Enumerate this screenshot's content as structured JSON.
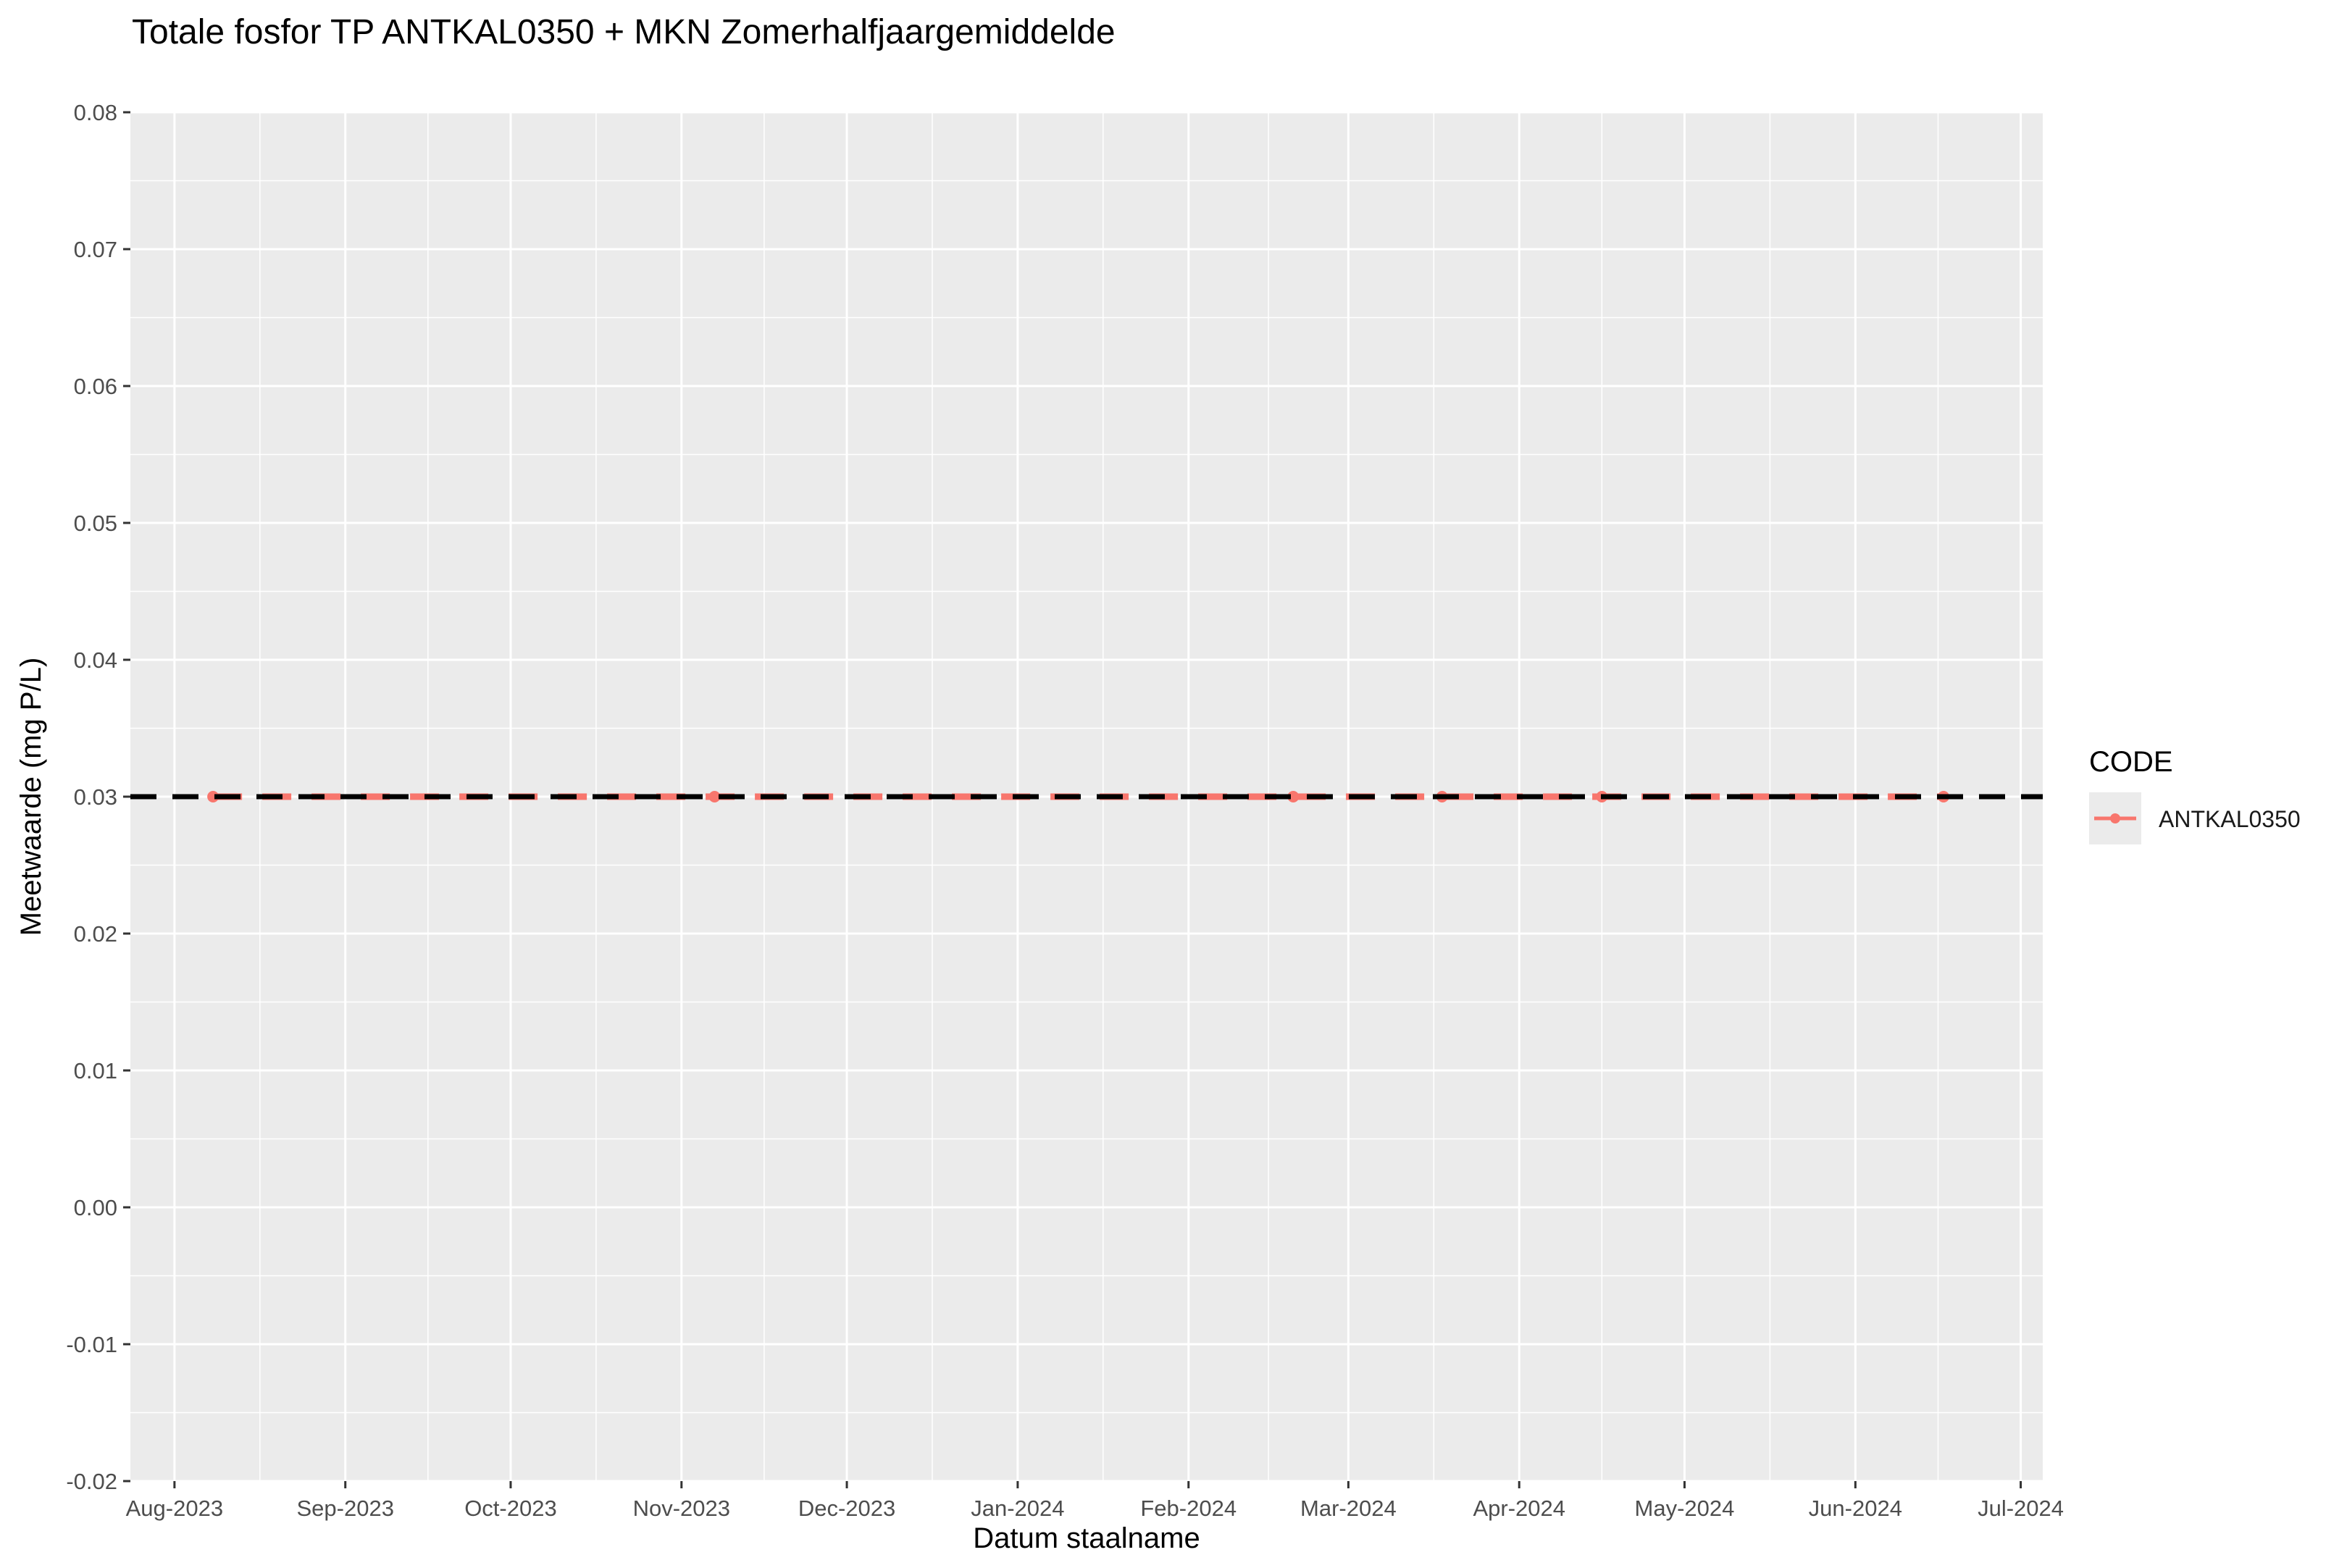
{
  "chart_data": {
    "type": "line",
    "title": "Totale fosfor TP ANTKAL0350 + MKN Zomerhalfjaargemiddelde",
    "xlabel": "Datum staalname",
    "ylabel": "Meetwaarde (mg P/L)",
    "ylim": [
      -0.02,
      0.08
    ],
    "xlim": [
      "2023-07-24",
      "2024-07-05"
    ],
    "y_ticks": [
      "-0.02",
      "-0.01",
      "0.00",
      "0.01",
      "0.02",
      "0.03",
      "0.04",
      "0.05",
      "0.06",
      "0.07",
      "0.08"
    ],
    "x_ticks": [
      {
        "date": "2023-08-01",
        "label": "Aug-2023"
      },
      {
        "date": "2023-09-01",
        "label": "Sep-2023"
      },
      {
        "date": "2023-10-01",
        "label": "Oct-2023"
      },
      {
        "date": "2023-11-01",
        "label": "Nov-2023"
      },
      {
        "date": "2023-12-01",
        "label": "Dec-2023"
      },
      {
        "date": "2024-01-01",
        "label": "Jan-2024"
      },
      {
        "date": "2024-02-01",
        "label": "Feb-2024"
      },
      {
        "date": "2024-03-01",
        "label": "Mar-2024"
      },
      {
        "date": "2024-04-01",
        "label": "Apr-2024"
      },
      {
        "date": "2024-05-01",
        "label": "May-2024"
      },
      {
        "date": "2024-06-01",
        "label": "Jun-2024"
      },
      {
        "date": "2024-07-01",
        "label": "Jul-2024"
      }
    ],
    "grid": true,
    "legend": {
      "title": "CODE",
      "position": "right"
    },
    "series": [
      {
        "name": "ANTKAL0350",
        "color": "#F8766D",
        "line_style": "dashed",
        "x": [
          "2023-08-08",
          "2023-11-07",
          "2024-02-20",
          "2024-03-18",
          "2024-04-16",
          "2024-06-17"
        ],
        "y": [
          0.03,
          0.03,
          0.03,
          0.03,
          0.03,
          0.03
        ]
      }
    ],
    "reference_lines": [
      {
        "y": 0.03,
        "color": "#000000",
        "line_style": "dashed"
      }
    ]
  }
}
